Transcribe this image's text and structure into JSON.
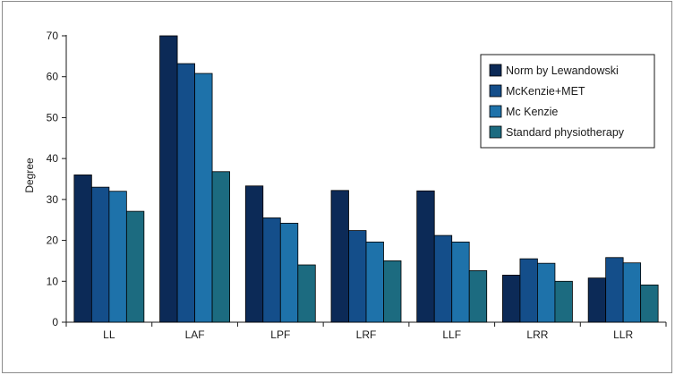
{
  "chart_data": {
    "type": "bar",
    "title": "",
    "xlabel": "",
    "ylabel": "Degree",
    "ylim": [
      0,
      70
    ],
    "yticks": [
      0,
      10,
      20,
      30,
      40,
      50,
      60,
      70
    ],
    "grid": false,
    "legend_position": "top-right",
    "categories": [
      "LL",
      "LAF",
      "LPF",
      "LRF",
      "LLF",
      "LRR",
      "LLR"
    ],
    "series": [
      {
        "name": "Norm by Lewandowski",
        "color": "#0c2a57",
        "values": [
          36,
          70,
          33.3,
          32.2,
          32.1,
          11.5,
          10.8
        ]
      },
      {
        "name": "McKenzie+MET",
        "color": "#144e8a",
        "values": [
          33,
          63.2,
          25.5,
          22.4,
          21.2,
          15.5,
          15.8
        ]
      },
      {
        "name": "Mc Kenzie",
        "color": "#1e72aa",
        "values": [
          32,
          60.8,
          24.2,
          19.6,
          19.6,
          14.4,
          14.5
        ]
      },
      {
        "name": "Standard physiotherapy",
        "color": "#1c6b80",
        "values": [
          27.1,
          36.8,
          14,
          15,
          12.6,
          10,
          9.1
        ]
      }
    ]
  }
}
